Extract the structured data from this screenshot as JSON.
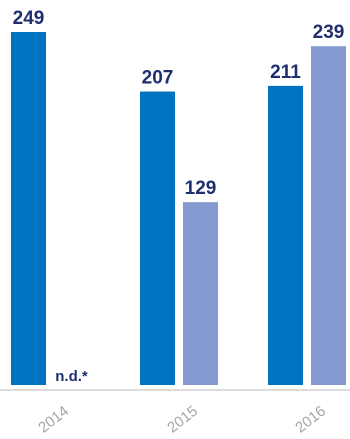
{
  "chart_data": {
    "type": "bar",
    "categories": [
      "2014",
      "2015",
      "2016"
    ],
    "series": [
      {
        "values": [
          249,
          207,
          211
        ],
        "color": "#0073c0"
      },
      {
        "values": [
          null,
          129,
          239
        ],
        "color": "#8599d1"
      }
    ],
    "value_labels": [
      [
        "249",
        "207",
        "211"
      ],
      [
        "n.d.*",
        "129",
        "239"
      ]
    ],
    "ylim": [
      0,
      249
    ],
    "grid": false,
    "legend": "none",
    "label_color": "#1f2f6e",
    "axis_color": "#b9b9b9",
    "tick_color": "#a5a5a5"
  }
}
